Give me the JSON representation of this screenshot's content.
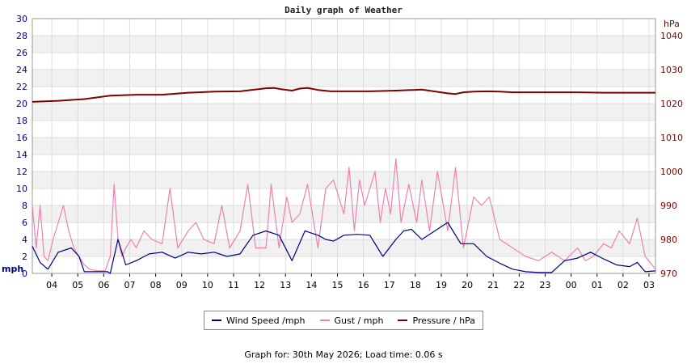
{
  "title": "Daily graph of Weather",
  "footer": "Graph for: 30th May 2026; Load time: 0.06 s",
  "colors": {
    "wind": "#000080",
    "gust": "#f080b0",
    "pressure": "#800000",
    "left_axis": "#000080",
    "right_axis": "#800000"
  },
  "legend": [
    {
      "label": "Wind Speed /mph",
      "color": "#000080"
    },
    {
      "label": "Gust / mph",
      "color": "#f080b0"
    },
    {
      "label": "Pressure / hPa",
      "color": "#800000"
    }
  ],
  "chart_data": {
    "type": "line",
    "title": "Daily graph of Weather",
    "ylabel": "mph",
    "y2label": "hPa",
    "ylim": [
      0,
      30
    ],
    "y2lim": [
      970,
      1045
    ],
    "yticks": [
      0,
      2,
      4,
      6,
      8,
      10,
      12,
      14,
      16,
      18,
      20,
      22,
      24,
      26,
      28,
      30
    ],
    "y2ticks": [
      970,
      980,
      990,
      1000,
      1010,
      1020,
      1030,
      1040
    ],
    "grid": true,
    "legend_position": "bottom",
    "xticks": [
      "04",
      "05",
      "06",
      "07",
      "08",
      "09",
      "10",
      "11",
      "12",
      "13",
      "14",
      "15",
      "16",
      "17",
      "18",
      "19",
      "20",
      "21",
      "22",
      "23",
      "00",
      "01",
      "02",
      "03"
    ],
    "xlim_hours": [
      0,
      24
    ],
    "series": [
      {
        "name": "Wind Speed /mph",
        "axis": "left",
        "x": [
          0,
          0.3,
          0.6,
          1,
          1.5,
          1.8,
          2,
          2.5,
          2.9,
          3,
          3.3,
          3.6,
          4,
          4.5,
          5,
          5.5,
          6,
          6.5,
          7,
          7.5,
          8,
          8.5,
          9,
          9.5,
          10,
          10.5,
          11,
          11.3,
          11.6,
          12,
          12.5,
          13,
          13.5,
          14,
          14.3,
          14.6,
          15,
          15.5,
          16,
          16.5,
          17,
          17.5,
          18,
          18.5,
          19,
          19.5,
          20,
          20.5,
          21,
          21.5,
          22,
          22.5,
          23,
          23.3,
          23.6,
          24
        ],
        "values": [
          3.2,
          1.3,
          0.5,
          2.5,
          3,
          2,
          0.2,
          0.2,
          0.2,
          0,
          4,
          1,
          1.5,
          2.3,
          2.5,
          1.8,
          2.5,
          2.3,
          2.5,
          2,
          2.3,
          4.5,
          5,
          4.5,
          1.5,
          5,
          4.5,
          4,
          3.8,
          4.5,
          4.6,
          4.5,
          2,
          4,
          5,
          5.2,
          4,
          5,
          6,
          3.5,
          3.5,
          2,
          1.2,
          0.5,
          0.2,
          0.1,
          0.1,
          1.5,
          1.8,
          2.5,
          1.7,
          1,
          0.8,
          1.3,
          0.2,
          0.3
        ]
      },
      {
        "name": "Gust / mph",
        "axis": "left",
        "x": [
          0,
          0.15,
          0.3,
          0.45,
          0.6,
          0.8,
          1,
          1.2,
          1.4,
          1.6,
          1.8,
          2,
          2.2,
          2.5,
          2.8,
          3,
          3.15,
          3.3,
          3.45,
          3.6,
          3.8,
          4,
          4.3,
          4.6,
          5,
          5.3,
          5.6,
          6,
          6.3,
          6.6,
          7,
          7.3,
          7.6,
          8,
          8.3,
          8.6,
          9,
          9.2,
          9.5,
          9.8,
          10,
          10.3,
          10.6,
          11,
          11.3,
          11.6,
          12,
          12.2,
          12.4,
          12.6,
          12.8,
          13,
          13.2,
          13.4,
          13.6,
          13.8,
          14,
          14.2,
          14.5,
          14.8,
          15,
          15.3,
          15.6,
          16,
          16.3,
          16.6,
          17,
          17.3,
          17.6,
          18,
          18.5,
          19,
          19.5,
          20,
          20.5,
          21,
          21.3,
          21.6,
          22,
          22.3,
          22.6,
          23,
          23.3,
          23.6,
          24
        ],
        "values": [
          8,
          3,
          8,
          2,
          1.5,
          4,
          6,
          8,
          5,
          3,
          2,
          1,
          0.5,
          0.3,
          0.3,
          2,
          10.5,
          4,
          2,
          3,
          4,
          3,
          5,
          4,
          3.5,
          10,
          3,
          5,
          6,
          4,
          3.5,
          8,
          3,
          5,
          10.5,
          3,
          3,
          10.5,
          3,
          9,
          6,
          7,
          10.5,
          3,
          10,
          11,
          7,
          12.5,
          5,
          11,
          8,
          10,
          12,
          6,
          10,
          7,
          13.5,
          6,
          10.5,
          6,
          11,
          5,
          12,
          5,
          12.5,
          3,
          9,
          8,
          9,
          4,
          3,
          2,
          1.5,
          2.5,
          1.5,
          3,
          1.5,
          2,
          3.5,
          3,
          5,
          3.5,
          6.5,
          2,
          0.5
        ]
      },
      {
        "name": "Pressure / hPa",
        "axis": "right",
        "x": [
          0,
          1,
          2,
          3,
          4,
          5,
          6,
          7,
          8,
          9,
          9.3,
          9.6,
          10,
          10.3,
          10.6,
          11,
          11.5,
          12,
          12.5,
          13,
          14,
          15,
          16,
          16.3,
          16.6,
          17,
          17.5,
          18,
          18.5,
          19,
          20,
          21,
          22,
          23,
          24
        ],
        "values": [
          1020.5,
          1020.8,
          1021.3,
          1022.3,
          1022.6,
          1022.6,
          1023.2,
          1023.5,
          1023.6,
          1024.5,
          1024.6,
          1024.2,
          1023.8,
          1024.4,
          1024.6,
          1024.0,
          1023.6,
          1023.6,
          1023.6,
          1023.6,
          1023.8,
          1024.1,
          1023.0,
          1022.8,
          1023.3,
          1023.5,
          1023.6,
          1023.5,
          1023.3,
          1023.3,
          1023.3,
          1023.3,
          1023.2,
          1023.2,
          1023.2
        ]
      }
    ]
  }
}
